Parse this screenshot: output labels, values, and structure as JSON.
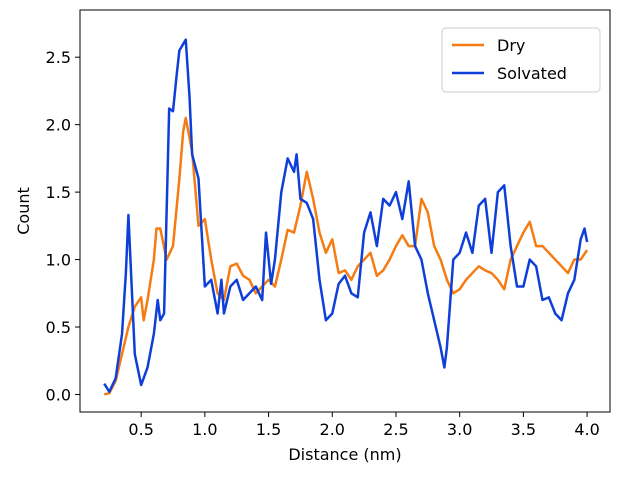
{
  "chart_data": {
    "type": "line",
    "x_label": "Distance (nm)",
    "y_label": "Count",
    "xlim": [
      0.02,
      4.18
    ],
    "ylim": [
      -0.13,
      2.85
    ],
    "xticks": [
      0.5,
      {
        "value": 1,
        "label": "1.0"
      },
      1.5,
      {
        "value": 2,
        "label": "2.0"
      },
      2.5,
      {
        "value": 3,
        "label": "3.0"
      },
      3.5,
      {
        "value": 4,
        "label": "4.0"
      }
    ],
    "yticks": [
      {
        "value": 0,
        "label": "0.0"
      },
      0.5,
      {
        "value": 1,
        "label": "1.0"
      },
      1.5,
      {
        "value": 2,
        "label": "2.0"
      },
      2.5
    ],
    "legend": "upper right",
    "series": [
      {
        "name": "Dry",
        "color": "#f57c12",
        "x": [
          0.21,
          0.25,
          0.3,
          0.35,
          0.4,
          0.45,
          0.5,
          0.52,
          0.55,
          0.6,
          0.62,
          0.65,
          0.7,
          0.75,
          0.8,
          0.83,
          0.85,
          0.9,
          0.95,
          1.0,
          1.05,
          1.1,
          1.15,
          1.2,
          1.25,
          1.3,
          1.35,
          1.4,
          1.45,
          1.5,
          1.55,
          1.6,
          1.65,
          1.7,
          1.75,
          1.8,
          1.85,
          1.9,
          1.95,
          2.0,
          2.05,
          2.1,
          2.15,
          2.2,
          2.25,
          2.3,
          2.35,
          2.4,
          2.45,
          2.5,
          2.55,
          2.6,
          2.65,
          2.7,
          2.75,
          2.8,
          2.85,
          2.9,
          2.95,
          3.0,
          3.05,
          3.1,
          3.15,
          3.2,
          3.25,
          3.3,
          3.35,
          3.4,
          3.45,
          3.5,
          3.55,
          3.6,
          3.65,
          3.7,
          3.75,
          3.8,
          3.85,
          3.9,
          3.95,
          4.0
        ],
        "values": [
          0.0,
          0.01,
          0.1,
          0.3,
          0.5,
          0.65,
          0.72,
          0.55,
          0.7,
          1.0,
          1.23,
          1.23,
          1.0,
          1.1,
          1.6,
          1.95,
          2.05,
          1.8,
          1.25,
          1.3,
          1.0,
          0.75,
          0.7,
          0.95,
          0.97,
          0.88,
          0.85,
          0.75,
          0.8,
          0.85,
          0.8,
          1.0,
          1.22,
          1.2,
          1.4,
          1.65,
          1.45,
          1.2,
          1.05,
          1.15,
          0.9,
          0.92,
          0.85,
          0.95,
          1.0,
          1.05,
          0.88,
          0.92,
          1.0,
          1.1,
          1.18,
          1.1,
          1.1,
          1.45,
          1.35,
          1.1,
          1.0,
          0.85,
          0.75,
          0.78,
          0.85,
          0.9,
          0.95,
          0.92,
          0.9,
          0.85,
          0.78,
          1.0,
          1.1,
          1.2,
          1.28,
          1.1,
          1.1,
          1.05,
          1.0,
          0.95,
          0.9,
          1.0,
          1.0,
          1.07
        ]
      },
      {
        "name": "Solvated",
        "color": "#0f3fd9",
        "x": [
          0.21,
          0.25,
          0.3,
          0.35,
          0.38,
          0.4,
          0.45,
          0.5,
          0.55,
          0.6,
          0.63,
          0.65,
          0.68,
          0.72,
          0.75,
          0.78,
          0.8,
          0.85,
          0.88,
          0.9,
          0.95,
          1.0,
          1.05,
          1.1,
          1.13,
          1.15,
          1.2,
          1.25,
          1.3,
          1.35,
          1.4,
          1.45,
          1.48,
          1.52,
          1.55,
          1.6,
          1.65,
          1.7,
          1.72,
          1.75,
          1.8,
          1.85,
          1.9,
          1.95,
          2.0,
          2.05,
          2.1,
          2.15,
          2.2,
          2.25,
          2.3,
          2.35,
          2.4,
          2.45,
          2.5,
          2.55,
          2.6,
          2.65,
          2.7,
          2.75,
          2.8,
          2.85,
          2.88,
          2.9,
          2.95,
          3.0,
          3.05,
          3.1,
          3.15,
          3.2,
          3.25,
          3.3,
          3.35,
          3.4,
          3.45,
          3.5,
          3.55,
          3.6,
          3.65,
          3.7,
          3.75,
          3.8,
          3.85,
          3.9,
          3.95,
          3.98,
          4.0
        ],
        "values": [
          0.08,
          0.02,
          0.12,
          0.45,
          0.9,
          1.33,
          0.3,
          0.07,
          0.2,
          0.45,
          0.7,
          0.55,
          0.6,
          2.12,
          2.1,
          2.38,
          2.55,
          2.63,
          2.2,
          1.78,
          1.6,
          0.8,
          0.85,
          0.6,
          0.85,
          0.6,
          0.8,
          0.85,
          0.7,
          0.75,
          0.8,
          0.7,
          1.2,
          0.82,
          1.0,
          1.5,
          1.75,
          1.65,
          1.78,
          1.45,
          1.42,
          1.3,
          0.85,
          0.55,
          0.6,
          0.82,
          0.88,
          0.75,
          0.72,
          1.2,
          1.35,
          1.1,
          1.45,
          1.4,
          1.5,
          1.3,
          1.58,
          1.1,
          1.0,
          0.75,
          0.55,
          0.35,
          0.2,
          0.35,
          1.0,
          1.05,
          1.2,
          1.05,
          1.4,
          1.45,
          1.05,
          1.5,
          1.55,
          1.1,
          0.8,
          0.8,
          1.0,
          0.95,
          0.7,
          0.72,
          0.6,
          0.55,
          0.75,
          0.85,
          1.15,
          1.23,
          1.13
        ]
      }
    ]
  }
}
